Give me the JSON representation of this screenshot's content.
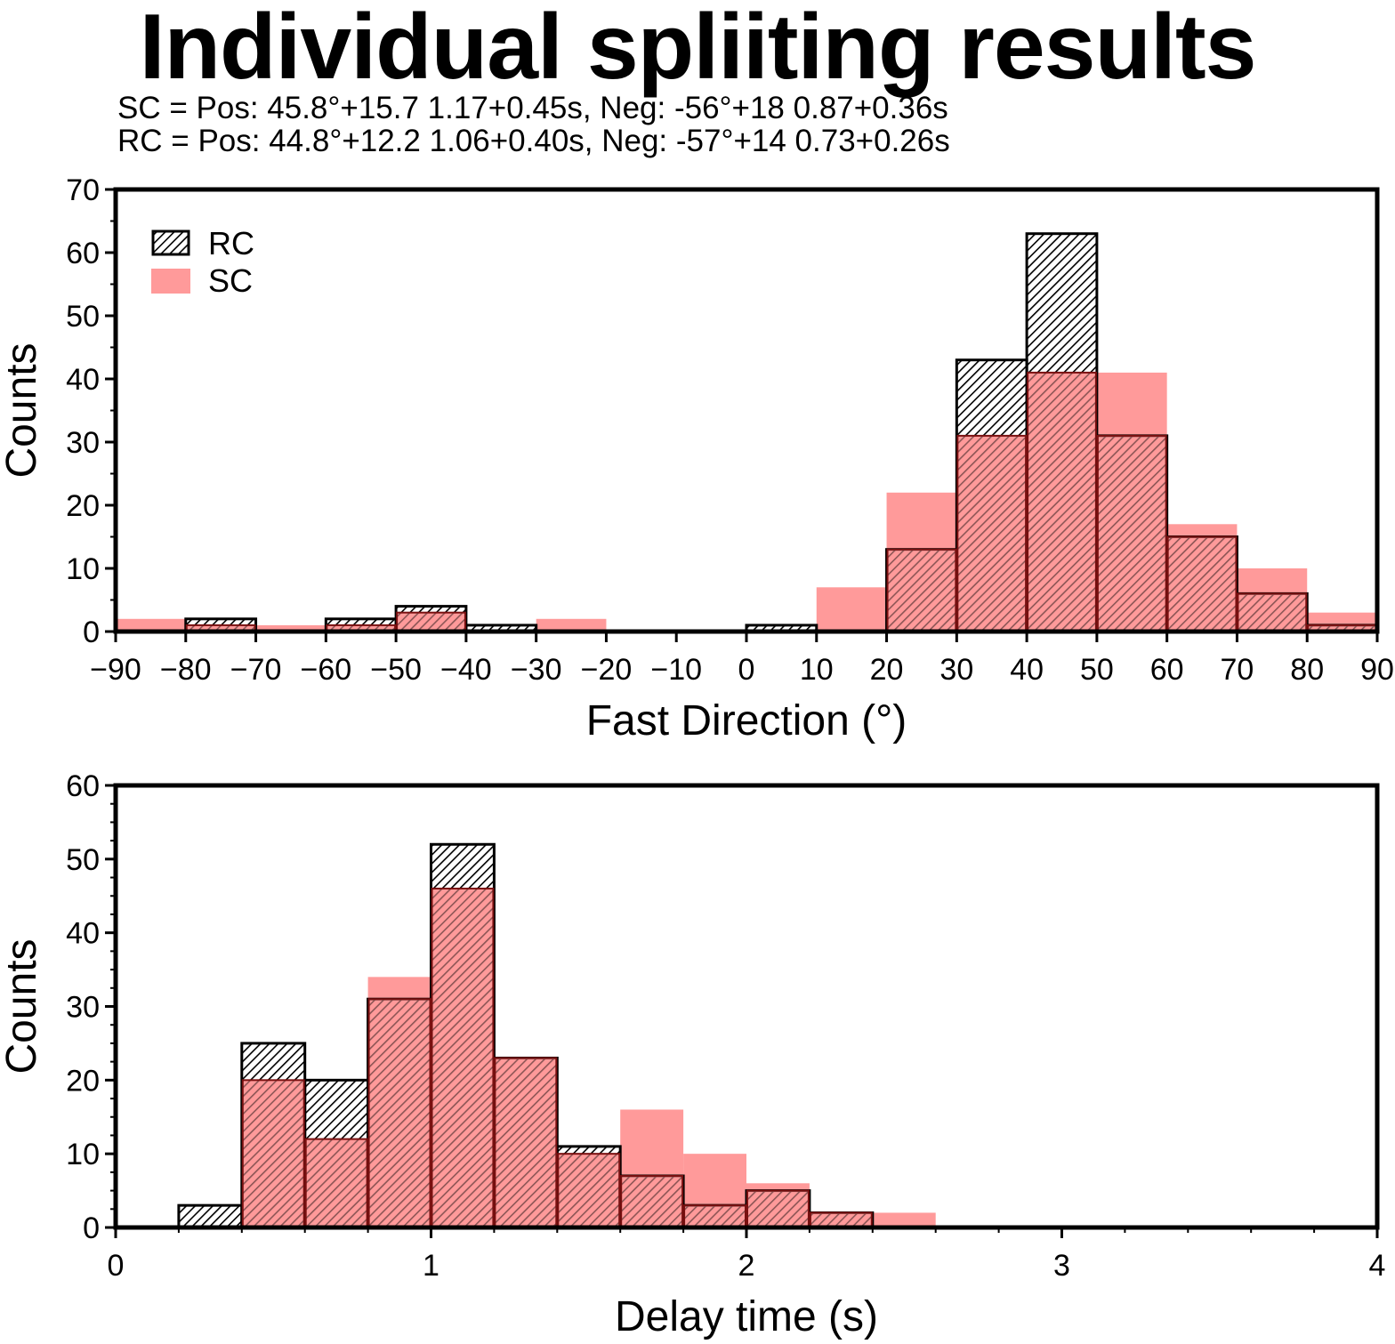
{
  "title": "Individual spliiting results",
  "subtitle_lines": [
    "SC = Pos: 45.8°+15.7 1.17+0.45s, Neg: -56°+18 0.87+0.36s",
    "RC = Pos: 44.8°+12.2 1.06+0.40s, Neg: -57°+14 0.73+0.26s"
  ],
  "colors": {
    "sc_fill": "#ff9a9a",
    "rc_hatch": "#000000",
    "frame": "#000000",
    "rc_over_sc": "#7a1010"
  },
  "legend": [
    {
      "name": "RC",
      "style": "hatched"
    },
    {
      "name": "SC",
      "style": "solid-pink"
    }
  ],
  "chart_data": [
    {
      "type": "bar",
      "subtype": "overlaid-histogram",
      "xlabel": "Fast Direction (°)",
      "ylabel": "Counts",
      "xlim": [
        -90,
        90
      ],
      "ylim": [
        0,
        70
      ],
      "bin_width": 10,
      "xticks": [
        -90,
        -80,
        -70,
        -60,
        -50,
        -40,
        -30,
        -20,
        -10,
        0,
        10,
        20,
        30,
        40,
        50,
        60,
        70,
        80,
        90
      ],
      "xtick_labels": [
        "−90",
        "−80",
        "−70",
        "−60",
        "−50",
        "−40",
        "−30",
        "−20",
        "−10",
        "0",
        "10",
        "20",
        "30",
        "40",
        "50",
        "60",
        "70",
        "80",
        "90"
      ],
      "yticks": [
        0,
        10,
        20,
        30,
        40,
        50,
        60,
        70
      ],
      "legend_position": "top-left",
      "bin_starts": [
        -90,
        -80,
        -70,
        -60,
        -50,
        -40,
        -30,
        -20,
        -10,
        0,
        10,
        20,
        30,
        40,
        50,
        60,
        70,
        80
      ],
      "series": [
        {
          "name": "SC",
          "values": [
            2,
            1,
            1,
            1,
            3,
            0,
            2,
            0,
            0,
            0,
            7,
            22,
            31,
            41,
            41,
            17,
            10,
            3
          ]
        },
        {
          "name": "RC",
          "values": [
            0,
            2,
            0,
            2,
            4,
            1,
            0,
            0,
            0,
            1,
            0,
            13,
            43,
            63,
            31,
            15,
            6,
            1
          ]
        }
      ]
    },
    {
      "type": "bar",
      "subtype": "overlaid-histogram",
      "xlabel": "Delay time (s)",
      "ylabel": "Counts",
      "xlim": [
        0,
        4
      ],
      "ylim": [
        0,
        60
      ],
      "bin_width": 0.2,
      "xticks": [
        0,
        1,
        2,
        3,
        4
      ],
      "xtick_labels": [
        "0",
        "1",
        "2",
        "3",
        "4"
      ],
      "yticks": [
        0,
        10,
        20,
        30,
        40,
        50,
        60
      ],
      "bin_starts": [
        0.2,
        0.4,
        0.6,
        0.8,
        1.0,
        1.2,
        1.4,
        1.6,
        1.8,
        2.0,
        2.2,
        2.4
      ],
      "series": [
        {
          "name": "SC",
          "values": [
            0,
            20,
            12,
            34,
            46,
            23,
            10,
            16,
            10,
            6,
            2,
            2
          ]
        },
        {
          "name": "RC",
          "values": [
            3,
            25,
            20,
            31,
            52,
            23,
            11,
            7,
            3,
            5,
            2,
            0
          ]
        }
      ]
    }
  ]
}
